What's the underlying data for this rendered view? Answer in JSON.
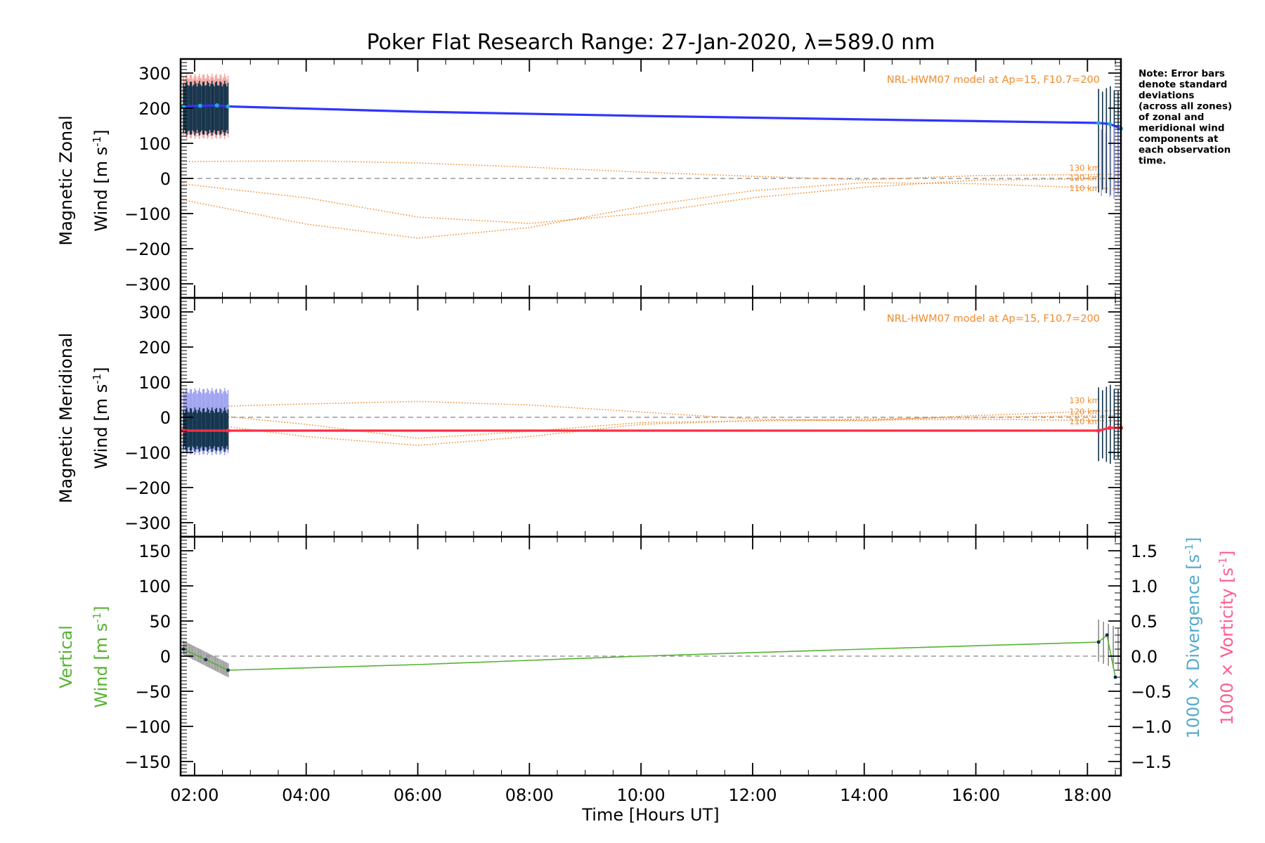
{
  "title": "Poker Flat Research Range: 27-Jan-2020, λ=589.0 nm",
  "note": [
    "Note: Error bars",
    "denote standard",
    "deviations",
    "(across all zones)",
    "of zonal and",
    "meridional wind",
    "components at",
    "each observation",
    "time."
  ],
  "xlabel": "Time [Hours UT]",
  "colors": {
    "zonal": "#2f35ff",
    "meridional": "#ff2d45",
    "model": "#f08a2c",
    "vertical": "#55b332",
    "divergence": "#55aacc",
    "vorticity": "#ff5d8f",
    "err_zonal_a": "#f4a7a0",
    "err_zonal_b": "#9ea2f0",
    "err_dark": "#10324a",
    "err_cyan": "#22aacc",
    "err_green": "#7fbf5f",
    "err_gray": "#8a8a8a"
  },
  "chart_data": [
    {
      "type": "line",
      "panel": "zonal",
      "ylabel_line1": "Magnetic Zonal",
      "ylabel_line2_word": "Wind",
      "ylabel_line2_unit": "[m s",
      "ylabel_line2_exp": "-1",
      "ylabel_line2_close": "]",
      "xlim": [
        1.75,
        18.6
      ],
      "ylim": [
        -340,
        340
      ],
      "yticks": [
        -300,
        -200,
        -100,
        0,
        100,
        200,
        300
      ],
      "ytick_labels": [
        "-300",
        "-200",
        "-100",
        "0",
        "100",
        "200",
        "300"
      ],
      "xticks": [
        2,
        4,
        6,
        8,
        10,
        12,
        14,
        16,
        18
      ],
      "xtick_labels": [
        "02:00",
        "04:00",
        "06:00",
        "08:00",
        "10:00",
        "12:00",
        "14:00",
        "16:00",
        "18:00"
      ],
      "model_label": "NRL-HWM07 model at Ap=15, F10.7=200",
      "model_curves": [
        {
          "name": "130 km",
          "x": [
            1.75,
            4.0,
            6.0,
            8.0,
            10.0,
            12.0,
            14.0,
            16.0,
            18.6
          ],
          "y": [
            48,
            50,
            44,
            32,
            18,
            6,
            -4,
            8,
            12
          ]
        },
        {
          "name": "120 km",
          "x": [
            1.75,
            4.0,
            6.0,
            8.0,
            10.0,
            12.0,
            14.0,
            16.0,
            18.6
          ],
          "y": [
            -15,
            -55,
            -110,
            -128,
            -100,
            -55,
            -25,
            -5,
            0
          ]
        },
        {
          "name": "110 km",
          "x": [
            1.75,
            4.0,
            6.0,
            8.0,
            10.0,
            12.0,
            14.0,
            16.0,
            18.6
          ],
          "y": [
            -60,
            -130,
            -170,
            -140,
            -80,
            -35,
            -12,
            -15,
            -30
          ]
        }
      ],
      "series": [
        {
          "name": "",
          "x": [
            1.8,
            2.1,
            2.4,
            2.6,
            6.0,
            10.0,
            14.0,
            18.2,
            18.4,
            18.6
          ],
          "y": [
            205,
            207,
            208,
            205,
            190,
            178,
            168,
            158,
            155,
            142
          ]
        }
      ],
      "errorbars": [
        {
          "x_start": 1.8,
          "x_end": 2.6,
          "count": 40,
          "center": 205,
          "lo": 120,
          "hi": 290,
          "color_key": "err_zonal_a"
        },
        {
          "x_start": 1.8,
          "x_end": 2.6,
          "count": 40,
          "center": 205,
          "lo": 130,
          "hi": 270,
          "color_key": "err_dark"
        },
        {
          "x_start": 18.2,
          "x_end": 18.55,
          "count": 6,
          "center": 150,
          "lo": -40,
          "hi": 255,
          "color_key": "err_dark"
        },
        {
          "x_start": 18.25,
          "x_end": 18.55,
          "count": 5,
          "center": 40,
          "lo": -50,
          "hi": 140,
          "color_key": "err_zonal_b"
        }
      ],
      "grid": false
    },
    {
      "type": "line",
      "panel": "meridional",
      "ylabel_line1": "Magnetic Meridional",
      "ylabel_line2_word": "Wind",
      "ylabel_line2_unit": "[m s",
      "ylabel_line2_exp": "-1",
      "ylabel_line2_close": "]",
      "xlim": [
        1.75,
        18.6
      ],
      "ylim": [
        -340,
        340
      ],
      "yticks": [
        -300,
        -200,
        -100,
        0,
        100,
        200,
        300
      ],
      "ytick_labels": [
        "-300",
        "-200",
        "-100",
        "0",
        "100",
        "200",
        "300"
      ],
      "xticks": [
        2,
        4,
        6,
        8,
        10,
        12,
        14,
        16,
        18
      ],
      "model_label": "NRL-HWM07 model at Ap=15, F10.7=200",
      "model_curves": [
        {
          "name": "130 km",
          "x": [
            1.75,
            4.0,
            6.0,
            8.0,
            10.0,
            12.0,
            14.0,
            16.0,
            18.6
          ],
          "y": [
            28,
            38,
            45,
            35,
            15,
            -5,
            -10,
            5,
            20
          ]
        },
        {
          "name": "120 km",
          "x": [
            1.75,
            4.0,
            6.0,
            8.0,
            10.0,
            12.0,
            14.0,
            16.0,
            18.6
          ],
          "y": [
            15,
            -20,
            -60,
            -40,
            -15,
            -10,
            -5,
            0,
            5
          ]
        },
        {
          "name": "110 km",
          "x": [
            1.75,
            4.0,
            6.0,
            8.0,
            10.0,
            12.0,
            14.0,
            16.0,
            18.6
          ],
          "y": [
            -10,
            -55,
            -80,
            -55,
            -20,
            -10,
            -8,
            -5,
            -10
          ]
        }
      ],
      "series": [
        {
          "name": "",
          "x": [
            1.8,
            2.6,
            6.0,
            10.0,
            14.0,
            18.2,
            18.4,
            18.6
          ],
          "y": [
            -38,
            -38,
            -38,
            -38,
            -38,
            -38,
            -30,
            -30
          ]
        }
      ],
      "errorbars": [
        {
          "x_start": 1.8,
          "x_end": 2.6,
          "count": 40,
          "center": -30,
          "lo": -100,
          "hi": 75,
          "color_key": "err_zonal_b"
        },
        {
          "x_start": 1.8,
          "x_end": 2.6,
          "count": 40,
          "center": -30,
          "lo": -90,
          "hi": 20,
          "color_key": "err_dark"
        },
        {
          "x_start": 18.2,
          "x_end": 18.55,
          "count": 6,
          "center": -20,
          "lo": -125,
          "hi": 85,
          "color_key": "err_dark"
        }
      ],
      "grid": false
    },
    {
      "type": "line",
      "panel": "vertical",
      "ylabel_line1": "Vertical",
      "ylabel_line2_word": "Wind",
      "ylabel_line2_unit": "[m s",
      "ylabel_line2_exp": "-1",
      "ylabel_line2_close": "]",
      "xlim": [
        1.75,
        18.6
      ],
      "ylim": [
        -170,
        170
      ],
      "yticks": [
        -150,
        -100,
        -50,
        0,
        50,
        100,
        150
      ],
      "ytick_labels": [
        "-150",
        "-100",
        "-50",
        "0",
        "50",
        "100",
        "150"
      ],
      "xticks": [
        2,
        4,
        6,
        8,
        10,
        12,
        14,
        16,
        18
      ],
      "xtick_labels": [
        "02:00",
        "04:00",
        "06:00",
        "08:00",
        "10:00",
        "12:00",
        "14:00",
        "16:00",
        "18:00"
      ],
      "right_axis": {
        "ylim": [
          -1.7,
          1.7
        ],
        "yticks": [
          -1.5,
          -1.0,
          -0.5,
          0.0,
          0.5,
          1.0,
          1.5
        ],
        "ytick_labels": [
          "-1.5",
          "-1.0",
          "-0.5",
          "0.0",
          "0.5",
          "1.0",
          "1.5"
        ],
        "label_divergence": "1000 × Divergence",
        "label_vorticity": "1000 × Vorticity",
        "unit_open": "[s",
        "unit_exp": "-1",
        "unit_close": "]"
      },
      "series": [
        {
          "name": "",
          "x": [
            1.8,
            2.2,
            2.6,
            6.0,
            10.0,
            14.0,
            18.2,
            18.35,
            18.5
          ],
          "y": [
            10,
            -5,
            -20,
            -12,
            0,
            10,
            20,
            30,
            -30
          ]
        }
      ],
      "errorbars": [
        {
          "x_start": 1.8,
          "x_end": 2.6,
          "count": 30,
          "center_start": 12,
          "center_end": -20,
          "half": 10,
          "color_key": "err_gray"
        },
        {
          "x_start": 18.2,
          "x_end": 18.55,
          "count": 5,
          "center_start": 22,
          "center_end": 10,
          "half": 30,
          "color_key": "err_gray"
        }
      ],
      "grid": false
    }
  ]
}
